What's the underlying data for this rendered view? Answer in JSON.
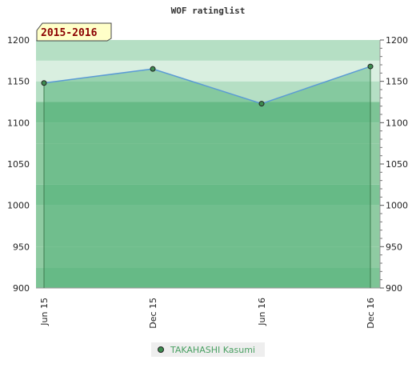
{
  "chart_data": {
    "type": "area",
    "title": "WOF ratinglist",
    "period_label": "2015-2016",
    "categories": [
      "Jun 15",
      "Dec 15",
      "Jun 16",
      "Dec 16"
    ],
    "series": [
      {
        "name": "TAKAHASHI Kasumi",
        "values": [
          1148,
          1165,
          1123,
          1168
        ]
      }
    ],
    "ylim": [
      900,
      1200
    ],
    "yticks": [
      900,
      950,
      1000,
      1050,
      1100,
      1150,
      1200
    ],
    "grid": true,
    "legend": "bottom-center",
    "colors": {
      "line": "#5b9bd5",
      "fill": "#4caf73",
      "point": "#3d8b4f",
      "band_dark": "#7dc496",
      "band_mid": "#8fcba2",
      "band_light": "#b5dfc4",
      "band_pale": "#d9efe0",
      "period_box": "#ffffc8",
      "legend_box": "#eeeeee"
    }
  }
}
